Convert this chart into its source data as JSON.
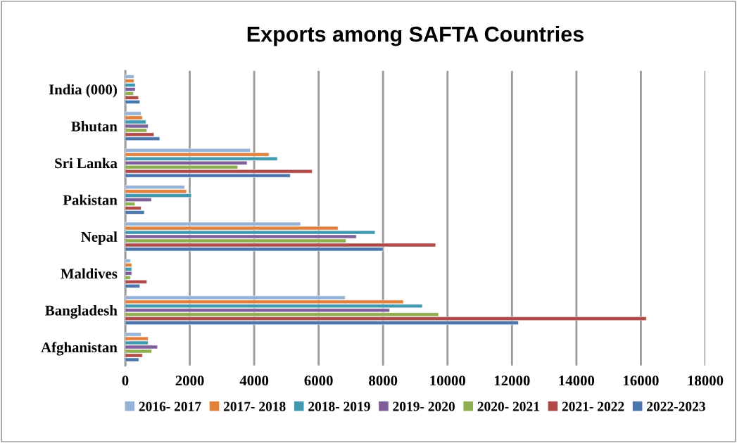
{
  "chart_data": {
    "type": "bar",
    "orientation": "horizontal",
    "title": "Exports among SAFTA Countries",
    "categories": [
      "India (000)",
      "Bhutan",
      "Sri Lanka",
      "Pakistan",
      "Nepal",
      "Maldives",
      "Bangladesh",
      "Afghanistan"
    ],
    "series": [
      {
        "name": "2016- 2017",
        "color": "#95b3d7",
        "values": [
          270,
          490,
          3880,
          1840,
          5440,
          160,
          6820,
          490
        ]
      },
      {
        "name": "2017- 2018",
        "color": "#e0823d",
        "values": [
          270,
          530,
          4460,
          1900,
          6600,
          200,
          8630,
          710
        ]
      },
      {
        "name": "2018- 2019",
        "color": "#4198af",
        "values": [
          310,
          640,
          4720,
          2050,
          7750,
          200,
          9220,
          710
        ]
      },
      {
        "name": "2019- 2020",
        "color": "#7f5f9a",
        "values": [
          310,
          710,
          3780,
          810,
          7170,
          200,
          8200,
          1000
        ]
      },
      {
        "name": "2020- 2021",
        "color": "#8fae4f",
        "values": [
          250,
          670,
          3490,
          300,
          6850,
          160,
          9720,
          820
        ]
      },
      {
        "name": "2021- 2022",
        "color": "#b04a48",
        "values": [
          410,
          890,
          5800,
          490,
          9630,
          670,
          16170,
          530
        ]
      },
      {
        "name": "2022-2023",
        "color": "#4a76ab",
        "values": [
          450,
          1070,
          5120,
          590,
          8000,
          450,
          12200,
          420
        ]
      }
    ],
    "xlim": [
      0,
      18000
    ],
    "xticks": [
      0,
      2000,
      4000,
      6000,
      8000,
      10000,
      12000,
      14000,
      16000,
      18000
    ],
    "grid": "x",
    "legend": "bottom"
  }
}
